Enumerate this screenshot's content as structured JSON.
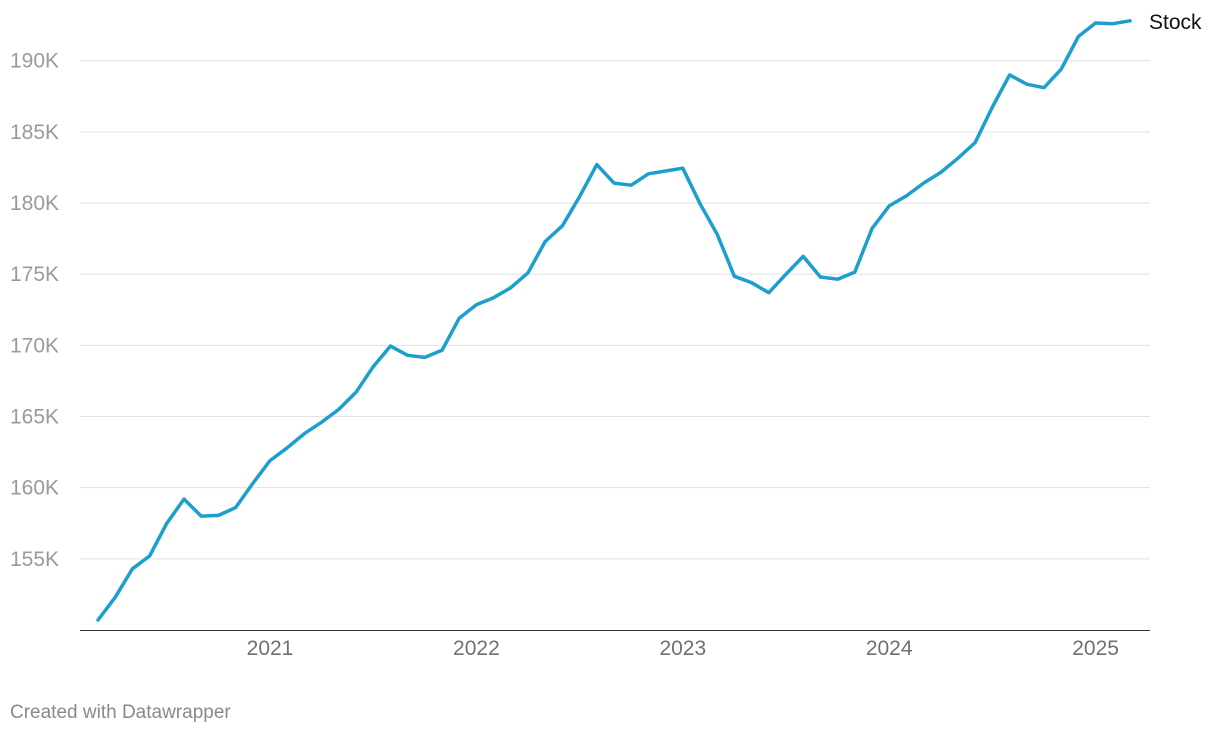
{
  "chart_data": {
    "type": "line",
    "ylim": [
      150000,
      193000
    ],
    "y_ticks": [
      {
        "value": 155000,
        "label": "155K"
      },
      {
        "value": 160000,
        "label": "160K"
      },
      {
        "value": 165000,
        "label": "165K"
      },
      {
        "value": 170000,
        "label": "170K"
      },
      {
        "value": 175000,
        "label": "175K"
      },
      {
        "value": 180000,
        "label": "180K"
      },
      {
        "value": 185000,
        "label": "185K"
      },
      {
        "value": 190000,
        "label": "190K"
      }
    ],
    "x_ticks": [
      {
        "value": "2021-01",
        "label": "2021"
      },
      {
        "value": "2022-01",
        "label": "2022"
      },
      {
        "value": "2023-01",
        "label": "2023"
      },
      {
        "value": "2024-01",
        "label": "2024"
      },
      {
        "value": "2025-01",
        "label": "2025"
      }
    ],
    "grid": true,
    "series": [
      {
        "name": "Stock",
        "color": "#1d9fcd",
        "x": [
          "2020-03",
          "2020-04",
          "2020-05",
          "2020-06",
          "2020-07",
          "2020-08",
          "2020-09",
          "2020-10",
          "2020-11",
          "2020-12",
          "2021-01",
          "2021-02",
          "2021-03",
          "2021-04",
          "2021-05",
          "2021-06",
          "2021-07",
          "2021-08",
          "2021-09",
          "2021-10",
          "2021-11",
          "2021-12",
          "2022-01",
          "2022-02",
          "2022-03",
          "2022-04",
          "2022-05",
          "2022-06",
          "2022-07",
          "2022-08",
          "2022-09",
          "2022-10",
          "2022-11",
          "2022-12",
          "2023-01",
          "2023-02",
          "2023-03",
          "2023-04",
          "2023-05",
          "2023-06",
          "2023-07",
          "2023-08",
          "2023-09",
          "2023-10",
          "2023-11",
          "2023-12",
          "2024-01",
          "2024-02",
          "2024-03",
          "2024-04",
          "2024-05",
          "2024-06",
          "2024-07",
          "2024-08",
          "2024-09",
          "2024-10",
          "2024-11",
          "2024-12",
          "2025-01",
          "2025-02",
          "2025-03"
        ],
        "values": [
          150700,
          152300,
          154300,
          155200,
          157500,
          159200,
          158000,
          158050,
          158600,
          160300,
          161900,
          162800,
          163800,
          164600,
          165500,
          166700,
          168500,
          169950,
          169300,
          169150,
          169650,
          171900,
          172850,
          173350,
          174050,
          175100,
          177300,
          178400,
          180450,
          182700,
          181400,
          181250,
          182050,
          182250,
          182450,
          179950,
          177800,
          174850,
          174400,
          173700,
          175000,
          176250,
          174800,
          174650,
          175150,
          178200,
          179800,
          180500,
          181400,
          182150,
          183150,
          184250,
          186750,
          189000,
          188350,
          188100,
          189400,
          191700,
          192650,
          192600,
          192800
        ]
      }
    ]
  },
  "footer": {
    "credit": "Created with Datawrapper"
  }
}
